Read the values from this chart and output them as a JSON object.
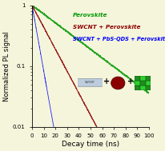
{
  "title": "",
  "xlabel": "Decay time (ns)",
  "ylabel": "Normalized PL signal",
  "xlim": [
    0,
    100
  ],
  "ylim_log": [
    0.01,
    1.0
  ],
  "legend_labels": [
    "Perovskite",
    "SWCNT + Perovskite",
    "SWCNT + PbS-QDS + Perovskite"
  ],
  "legend_colors": [
    "#009900",
    "#8B0000",
    "#0000FF"
  ],
  "bg_color": "#F5F5DC",
  "perovskite_tau": 30,
  "swcnt_perovskite_tau": 12,
  "swcnt_pbs_perovskite_tau": 4,
  "noise_amp_perovskite": 0.015,
  "noise_amp_swcnt": 0.012,
  "noise_amp_pbs": 0.008
}
